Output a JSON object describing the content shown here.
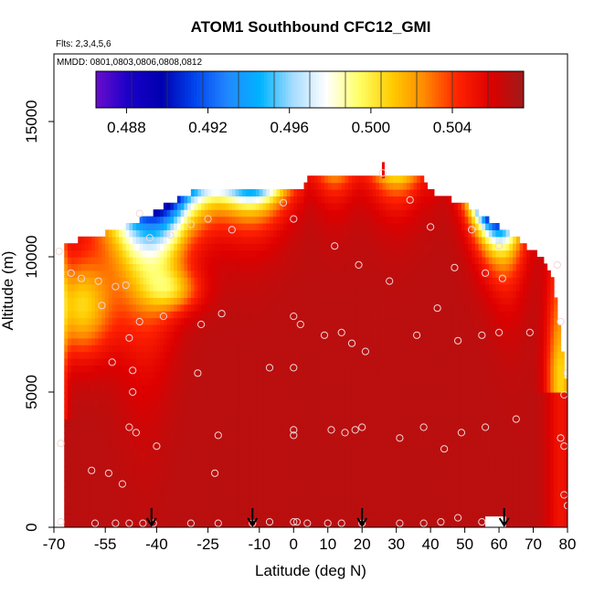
{
  "chart_data": {
    "type": "heatmap",
    "title": "ATOM1 Southbound CFC12_GMI",
    "flights_label": "Flts: 2,3,4,5,6",
    "dates_label": "MMDD: 0801,0803,0806,0808,0812",
    "xlabel": "Latitude (deg N)",
    "ylabel": "Altitude (m)",
    "xlim": [
      -70,
      80
    ],
    "ylim": [
      0,
      17500
    ],
    "x_ticks": [
      -70,
      -55,
      -40,
      -25,
      -10,
      0,
      10,
      20,
      30,
      40,
      50,
      60,
      70,
      80
    ],
    "x_tick_labels": [
      "-70",
      "-55",
      "-40",
      "-25",
      "-10",
      "0",
      "10",
      "20",
      "30",
      "40",
      "50",
      "60",
      "70",
      "80"
    ],
    "y_ticks": [
      0,
      5000,
      10000,
      15000
    ],
    "y_tick_labels": [
      "0",
      "5000",
      "10000",
      "15000"
    ],
    "colorbar": {
      "min": 0.4865,
      "max": 0.5075,
      "ticks": [
        0.488,
        0.492,
        0.496,
        0.5,
        0.504
      ],
      "tick_labels": [
        "0.488",
        "0.492",
        "0.496",
        "0.500",
        "0.504"
      ],
      "colors": [
        "#6a0dcc",
        "#1a00c8",
        "#0000b0",
        "#0044ee",
        "#2288ff",
        "#00b4ff",
        "#a8dcff",
        "#ffffff",
        "#ffff66",
        "#ffcc00",
        "#ff8800",
        "#ff2200",
        "#dd0000",
        "#a01a1a"
      ]
    },
    "background_value": 0.5068,
    "field_top_profile": [
      {
        "lat": -67,
        "alt": 10500
      },
      {
        "lat": -57,
        "alt": 10800
      },
      {
        "lat": -47,
        "alt": 11200
      },
      {
        "lat": -40,
        "alt": 11700
      },
      {
        "lat": -30,
        "alt": 12400
      },
      {
        "lat": 3,
        "alt": 12400
      },
      {
        "lat": 4,
        "alt": 12900
      },
      {
        "lat": 38,
        "alt": 12900
      },
      {
        "lat": 40,
        "alt": 12400
      },
      {
        "lat": 49,
        "alt": 12000
      },
      {
        "lat": 55,
        "alt": 11500
      },
      {
        "lat": 67,
        "alt": 10500
      },
      {
        "lat": 72,
        "alt": 10000
      },
      {
        "lat": 76,
        "alt": 9000
      },
      {
        "lat": 78,
        "alt": 7000
      },
      {
        "lat": 80,
        "alt": 5000
      },
      {
        "lat": 80,
        "alt": 0
      }
    ],
    "observation_points": [
      {
        "lat": -68.5,
        "alt": 10200
      },
      {
        "lat": -65,
        "alt": 9400
      },
      {
        "lat": -62,
        "alt": 9200
      },
      {
        "lat": -57,
        "alt": 9100
      },
      {
        "lat": -52,
        "alt": 8900
      },
      {
        "lat": -49,
        "alt": 8950
      },
      {
        "lat": -56,
        "alt": 8200
      },
      {
        "lat": -48,
        "alt": 7000
      },
      {
        "lat": -45,
        "alt": 7600
      },
      {
        "lat": -38,
        "alt": 7800
      },
      {
        "lat": -53,
        "alt": 6100
      },
      {
        "lat": -47,
        "alt": 5800
      },
      {
        "lat": -47,
        "alt": 5000
      },
      {
        "lat": -48,
        "alt": 3700
      },
      {
        "lat": -46,
        "alt": 3500
      },
      {
        "lat": -40,
        "alt": 3000
      },
      {
        "lat": -28,
        "alt": 5700
      },
      {
        "lat": -27,
        "alt": 7500
      },
      {
        "lat": -21,
        "alt": 7900
      },
      {
        "lat": -22,
        "alt": 3400
      },
      {
        "lat": -68,
        "alt": 3100
      },
      {
        "lat": -59,
        "alt": 2100
      },
      {
        "lat": -54,
        "alt": 2000
      },
      {
        "lat": -50,
        "alt": 1600
      },
      {
        "lat": -23,
        "alt": 2000
      },
      {
        "lat": -45,
        "alt": 11600
      },
      {
        "lat": -42,
        "alt": 10700
      },
      {
        "lat": -36,
        "alt": 10800
      },
      {
        "lat": -30,
        "alt": 11200
      },
      {
        "lat": -25,
        "alt": 11400
      },
      {
        "lat": -18,
        "alt": 11000
      },
      {
        "lat": -3,
        "alt": 12000
      },
      {
        "lat": 0,
        "alt": 11400
      },
      {
        "lat": 12,
        "alt": 10400
      },
      {
        "lat": 19,
        "alt": 9700
      },
      {
        "lat": 28,
        "alt": 9100
      },
      {
        "lat": 34,
        "alt": 12100
      },
      {
        "lat": 40,
        "alt": 11100
      },
      {
        "lat": 52,
        "alt": 11000
      },
      {
        "lat": 60,
        "alt": 10400
      },
      {
        "lat": 47,
        "alt": 9600
      },
      {
        "lat": 56,
        "alt": 9400
      },
      {
        "lat": 61,
        "alt": 9200
      },
      {
        "lat": 42,
        "alt": 8100
      },
      {
        "lat": 36,
        "alt": 7100
      },
      {
        "lat": 48,
        "alt": 6900
      },
      {
        "lat": 55,
        "alt": 7100
      },
      {
        "lat": 60,
        "alt": 7200
      },
      {
        "lat": 69,
        "alt": 7200
      },
      {
        "lat": 78,
        "alt": 7600
      },
      {
        "lat": 0,
        "alt": 7800
      },
      {
        "lat": 2,
        "alt": 7500
      },
      {
        "lat": 9,
        "alt": 7100
      },
      {
        "lat": 14,
        "alt": 7200
      },
      {
        "lat": 17,
        "alt": 6800
      },
      {
        "lat": 21,
        "alt": 6500
      },
      {
        "lat": -7,
        "alt": 5900
      },
      {
        "lat": 0,
        "alt": 5900
      },
      {
        "lat": 0,
        "alt": 3600
      },
      {
        "lat": 0,
        "alt": 3400
      },
      {
        "lat": 11,
        "alt": 3600
      },
      {
        "lat": 15,
        "alt": 3500
      },
      {
        "lat": 18,
        "alt": 3600
      },
      {
        "lat": 20,
        "alt": 3700
      },
      {
        "lat": 31,
        "alt": 3300
      },
      {
        "lat": 38,
        "alt": 3700
      },
      {
        "lat": 44,
        "alt": 2900
      },
      {
        "lat": 49,
        "alt": 3500
      },
      {
        "lat": 56,
        "alt": 3700
      },
      {
        "lat": 65,
        "alt": 4000
      },
      {
        "lat": 78,
        "alt": 3300
      },
      {
        "lat": 79,
        "alt": 3000
      },
      {
        "lat": 80,
        "alt": 5700
      },
      {
        "lat": 79,
        "alt": 4900
      },
      {
        "lat": 79,
        "alt": 1200
      },
      {
        "lat": 80,
        "alt": 800
      },
      {
        "lat": 26,
        "alt": 13100
      },
      {
        "lat": 77,
        "alt": 9700
      },
      {
        "lat": -68,
        "alt": 200
      },
      {
        "lat": -58,
        "alt": 150
      },
      {
        "lat": -52,
        "alt": 150
      },
      {
        "lat": -48,
        "alt": 150
      },
      {
        "lat": -44,
        "alt": 150
      },
      {
        "lat": -41,
        "alt": 150
      },
      {
        "lat": -30,
        "alt": 150
      },
      {
        "lat": -22,
        "alt": 150
      },
      {
        "lat": -12,
        "alt": 150
      },
      {
        "lat": -7,
        "alt": 200
      },
      {
        "lat": 0,
        "alt": 200
      },
      {
        "lat": 1,
        "alt": 200
      },
      {
        "lat": 4,
        "alt": 150
      },
      {
        "lat": 10,
        "alt": 150
      },
      {
        "lat": 14,
        "alt": 150
      },
      {
        "lat": 20,
        "alt": 150
      },
      {
        "lat": 31,
        "alt": 150
      },
      {
        "lat": 38,
        "alt": 150
      },
      {
        "lat": 43,
        "alt": 200
      },
      {
        "lat": 48,
        "alt": 350
      },
      {
        "lat": 55,
        "alt": 200
      }
    ],
    "arrow_markers_lat": [
      -41.5,
      -12,
      20,
      61.5
    ]
  }
}
